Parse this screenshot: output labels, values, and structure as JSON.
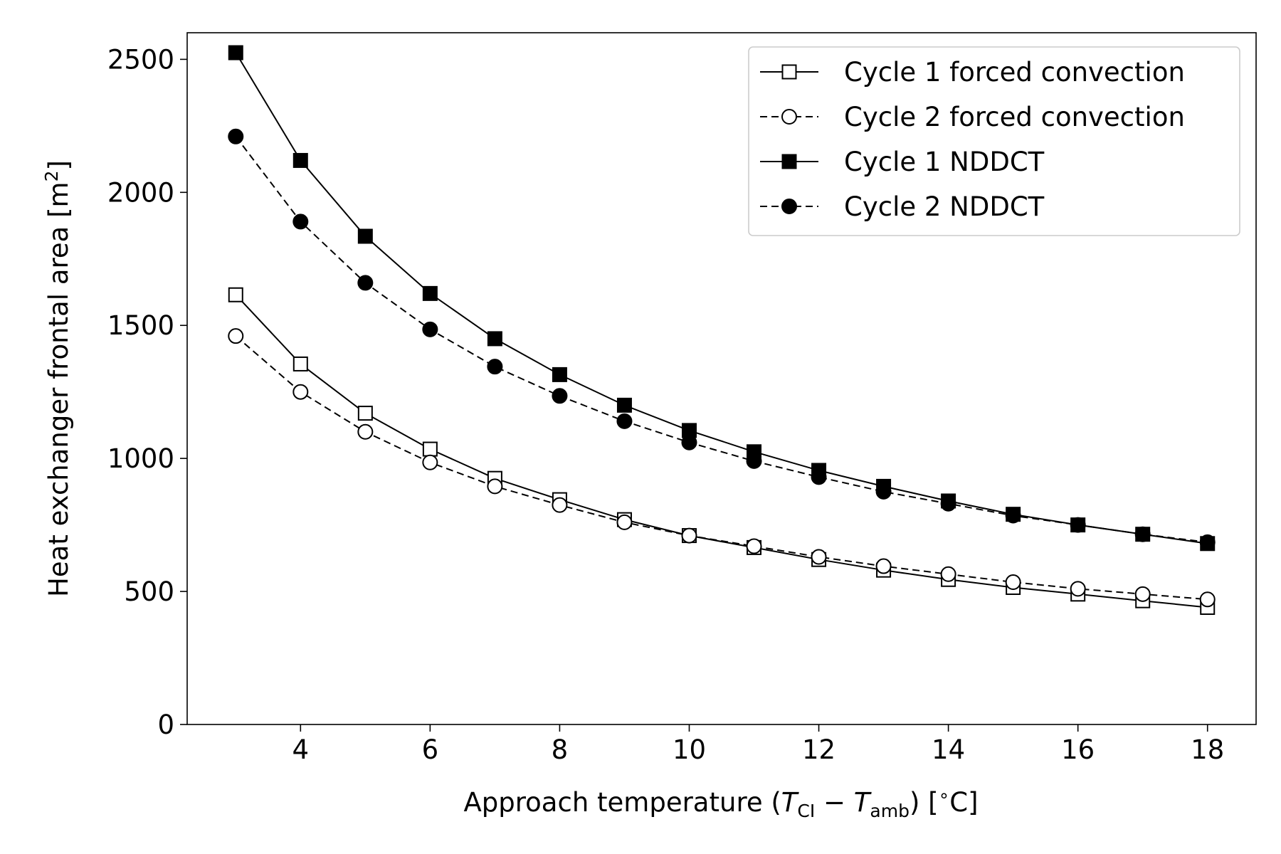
{
  "chart_data": {
    "type": "line",
    "xlabel": {
      "prefix": "Approach temperature (",
      "var1": "T",
      "sub1": "CI",
      "minus": " − ",
      "var2": "T",
      "sub2": "amb",
      "suffix": ") [",
      "deg": "∘",
      "unit": "C]"
    },
    "ylabel": {
      "text": "Heat exchanger frontal area [m",
      "sup": "2",
      "close": "]"
    },
    "xlim": [
      2.25,
      18.75
    ],
    "ylim": [
      0,
      2600
    ],
    "xticks": [
      4,
      6,
      8,
      10,
      12,
      14,
      16,
      18
    ],
    "yticks": [
      0,
      500,
      1000,
      1500,
      2000,
      2500
    ],
    "legend_position": "top-right",
    "x": [
      3,
      4,
      5,
      6,
      7,
      8,
      9,
      10,
      11,
      12,
      13,
      14,
      15,
      16,
      17,
      18
    ],
    "series": [
      {
        "name": "Cycle 1 forced convection",
        "line": "solid",
        "marker": "square",
        "filled": false,
        "values": [
          1615,
          1355,
          1170,
          1035,
          925,
          845,
          770,
          710,
          665,
          620,
          580,
          545,
          515,
          490,
          465,
          440
        ]
      },
      {
        "name": "Cycle 2 forced convection",
        "line": "dashed",
        "marker": "circle",
        "filled": false,
        "values": [
          1460,
          1250,
          1100,
          985,
          895,
          825,
          760,
          710,
          670,
          630,
          595,
          565,
          535,
          510,
          490,
          470
        ]
      },
      {
        "name": "Cycle 1 NDDCT",
        "line": "solid",
        "marker": "square",
        "filled": true,
        "values": [
          2525,
          2120,
          1835,
          1620,
          1450,
          1315,
          1200,
          1105,
          1025,
          955,
          895,
          840,
          790,
          750,
          715,
          680
        ]
      },
      {
        "name": "Cycle 2 NDDCT",
        "line": "dashed",
        "marker": "circle",
        "filled": true,
        "values": [
          2210,
          1890,
          1660,
          1485,
          1345,
          1235,
          1140,
          1060,
          990,
          930,
          875,
          830,
          785,
          750,
          715,
          685
        ]
      }
    ]
  }
}
